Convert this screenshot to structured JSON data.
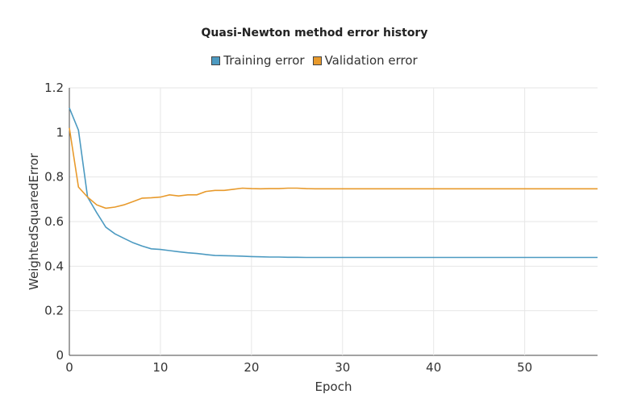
{
  "chart_data": {
    "type": "line",
    "title": "Quasi-Newton method error history",
    "xlabel": "Epoch",
    "ylabel": "WeightedSquaredError",
    "xlim": [
      0,
      58
    ],
    "ylim": [
      0,
      1.2
    ],
    "xticks": [
      0,
      10,
      20,
      30,
      40,
      50
    ],
    "yticks": [
      0,
      0.2,
      0.4,
      0.6,
      0.8,
      1,
      1.2
    ],
    "ytick_labels": [
      "0",
      "0.2",
      "0.4",
      "0.6",
      "0.8",
      "1",
      "1.2"
    ],
    "grid": true,
    "legend_position": "top",
    "series": [
      {
        "name": "Training error",
        "color": "#4c9ac1",
        "x": [
          0,
          1,
          2,
          3,
          4,
          5,
          6,
          7,
          8,
          9,
          10,
          11,
          12,
          13,
          14,
          15,
          16,
          17,
          18,
          19,
          20,
          21,
          22,
          23,
          24,
          25,
          26,
          27,
          28,
          29,
          30,
          35,
          40,
          45,
          50,
          55,
          58
        ],
        "values": [
          1.11,
          1.01,
          0.71,
          0.64,
          0.575,
          0.545,
          0.525,
          0.505,
          0.49,
          0.478,
          0.475,
          0.47,
          0.465,
          0.46,
          0.457,
          0.452,
          0.448,
          0.447,
          0.446,
          0.445,
          0.443,
          0.442,
          0.441,
          0.441,
          0.44,
          0.44,
          0.439,
          0.439,
          0.439,
          0.439,
          0.439,
          0.439,
          0.439,
          0.439,
          0.439,
          0.439,
          0.439
        ]
      },
      {
        "name": "Validation error",
        "color": "#e89a2c",
        "x": [
          0,
          1,
          2,
          3,
          4,
          5,
          6,
          7,
          8,
          9,
          10,
          11,
          12,
          13,
          14,
          15,
          16,
          17,
          18,
          19,
          20,
          21,
          22,
          23,
          24,
          25,
          26,
          27,
          28,
          29,
          30,
          35,
          40,
          45,
          50,
          55,
          58
        ],
        "values": [
          1.02,
          0.755,
          0.71,
          0.675,
          0.66,
          0.665,
          0.675,
          0.69,
          0.705,
          0.707,
          0.71,
          0.72,
          0.715,
          0.72,
          0.72,
          0.735,
          0.74,
          0.74,
          0.745,
          0.75,
          0.748,
          0.747,
          0.748,
          0.748,
          0.75,
          0.75,
          0.748,
          0.747,
          0.747,
          0.747,
          0.747,
          0.747,
          0.747,
          0.747,
          0.747,
          0.747,
          0.747
        ]
      }
    ]
  }
}
